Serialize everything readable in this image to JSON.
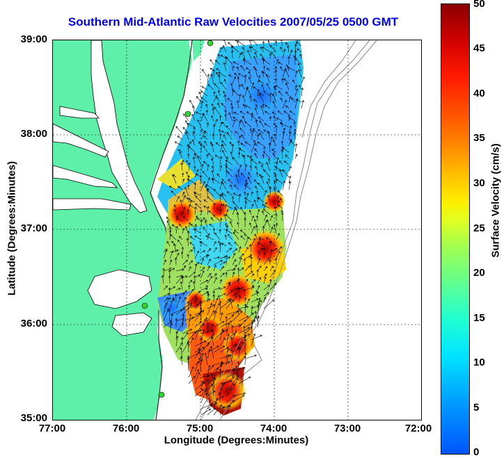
{
  "title": "Southern Mid-Atlantic Raw Velocities 2007/05/25 0500 GMT",
  "x_axis": {
    "title": "Longitude (Degrees:Minutes)",
    "ticks": [
      "77:00",
      "76:00",
      "75:00",
      "74:00",
      "73:00",
      "72:00"
    ]
  },
  "y_axis": {
    "title": "Latitude (Degrees:Minutes)",
    "ticks": [
      "39:00",
      "38:00",
      "37:00",
      "36:00",
      "35:00"
    ]
  },
  "colorbar": {
    "title": "Surface Velocity (cm/s)",
    "ticks": [
      "50",
      "45",
      "40",
      "35",
      "30",
      "25",
      "20",
      "15",
      "10",
      "5",
      "0"
    ],
    "range": [
      0,
      50
    ]
  },
  "colors": {
    "land": "#5ef0a8",
    "water": "#ffffff",
    "title": "#0000ee",
    "station": "#35d035"
  }
}
